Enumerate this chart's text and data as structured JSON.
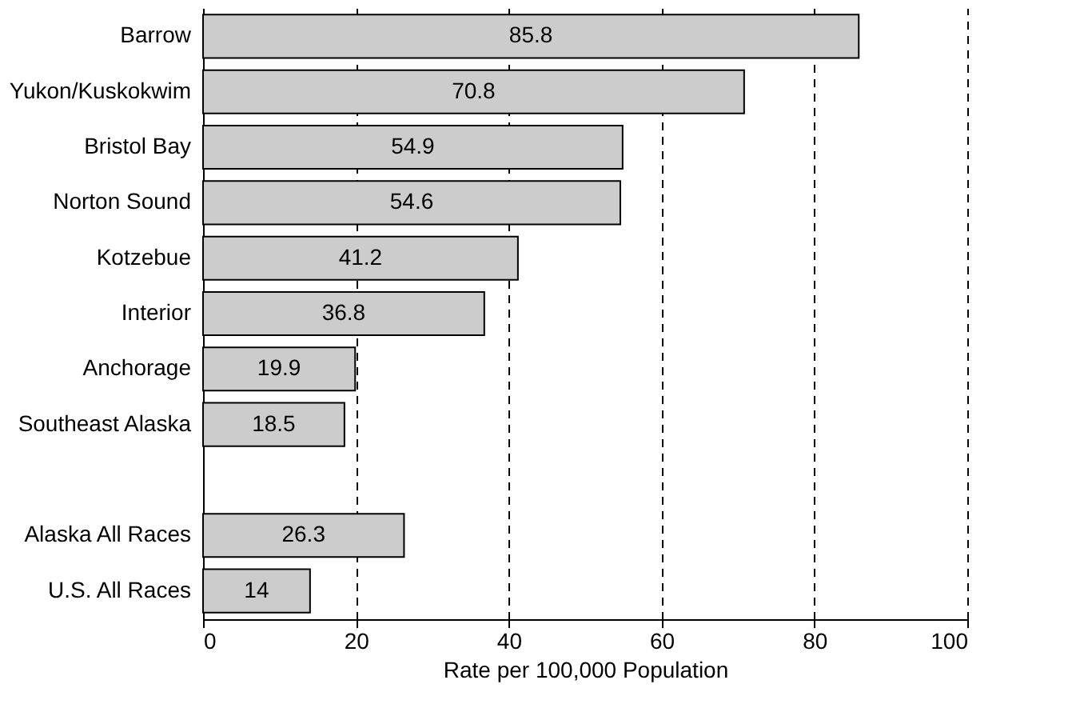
{
  "chart_data": {
    "type": "bar",
    "orientation": "horizontal",
    "xlabel": "Rate per 100,000 Population",
    "categories": [
      "Barrow",
      "Yukon/Kuskokwim",
      "Bristol Bay",
      "Norton Sound",
      "Kotzebue",
      "Interior",
      "Anchorage",
      "Southeast Alaska",
      null,
      "Alaska All Races",
      "U.S. All Races"
    ],
    "values": [
      85.8,
      70.8,
      54.9,
      54.6,
      41.2,
      36.8,
      19.9,
      18.5,
      null,
      26.3,
      14
    ],
    "color": "#cccccc",
    "xlim": [
      0,
      100
    ],
    "xticks": [
      0,
      20,
      40,
      60,
      80,
      100
    ],
    "grid": "x",
    "data_labels": true
  }
}
